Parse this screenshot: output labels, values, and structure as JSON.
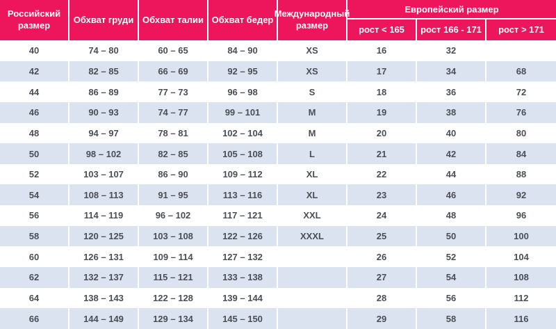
{
  "colors": {
    "header_bg": "#ED155C",
    "header_text": "#FFFFFF",
    "row_bg": "#FFFFFF",
    "row_alt_bg": "#DCE3F0",
    "body_text": "#4A4E55"
  },
  "chart_data": {
    "type": "table",
    "header": {
      "russian_size": "Российский размер",
      "chest": "Обхват груди",
      "waist": "Обхват талии",
      "hips": "Обхват бедер",
      "international": "Международный размер",
      "european_group": "Европейский размер",
      "height_lt_165": "рост < 165",
      "height_166_171": "рост 166 - 171",
      "height_gt_171": "рост > 171"
    },
    "columns": [
      "Российский размер",
      "Обхват груди",
      "Обхват талии",
      "Обхват бедер",
      "Международный размер",
      "рост < 165",
      "рост 166 - 171",
      "рост > 171"
    ],
    "rows": [
      [
        "40",
        "74 – 80",
        "60 – 65",
        "84 – 90",
        "XS",
        "16",
        "32",
        ""
      ],
      [
        "42",
        "82 – 85",
        "66 – 69",
        "92 – 95",
        "XS",
        "17",
        "34",
        "68"
      ],
      [
        "44",
        "86 – 89",
        "77 – 73",
        "96 – 98",
        "S",
        "18",
        "36",
        "72"
      ],
      [
        "46",
        "90 – 93",
        "74 – 77",
        "99 – 101",
        "M",
        "19",
        "38",
        "76"
      ],
      [
        "48",
        "94 – 97",
        "78 – 81",
        "102 – 104",
        "M",
        "20",
        "40",
        "80"
      ],
      [
        "50",
        "98 – 102",
        "82 – 85",
        "105 – 108",
        "L",
        "21",
        "42",
        "84"
      ],
      [
        "52",
        "103 – 107",
        "86 – 90",
        "109 – 112",
        "XL",
        "22",
        "44",
        "88"
      ],
      [
        "54",
        "108 – 113",
        "91 – 95",
        "113 – 116",
        "XL",
        "23",
        "46",
        "92"
      ],
      [
        "56",
        "114 – 119",
        "96 – 102",
        "117 – 121",
        "XXL",
        "24",
        "48",
        "96"
      ],
      [
        "58",
        "120 – 125",
        "103 – 108",
        "122 – 126",
        "XXXL",
        "25",
        "50",
        "100"
      ],
      [
        "60",
        "126 – 131",
        "109 – 114",
        "127 – 132",
        "",
        "26",
        "52",
        "104"
      ],
      [
        "62",
        "132 – 137",
        "115 – 121",
        "133 – 138",
        "",
        "27",
        "54",
        "108"
      ],
      [
        "64",
        "138 – 143",
        "122 – 128",
        "139 – 144",
        "",
        "28",
        "56",
        "112"
      ],
      [
        "66",
        "144 – 149",
        "129 – 134",
        "145 – 150",
        "",
        "29",
        "58",
        "116"
      ]
    ]
  }
}
